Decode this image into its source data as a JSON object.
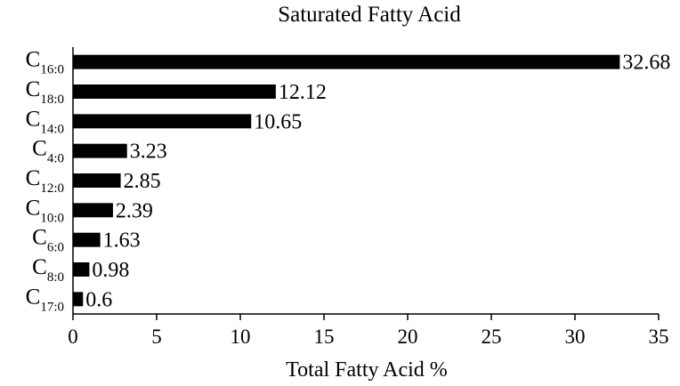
{
  "chart_data": {
    "type": "bar",
    "orientation": "horizontal",
    "title": "Saturated Fatty Acid",
    "xlabel": "Total Fatty Acid %",
    "ylabel": "",
    "xlim": [
      0,
      35
    ],
    "x_ticks": [
      0,
      5,
      10,
      15,
      20,
      25,
      30,
      35
    ],
    "grid": false,
    "bar_color": "#000000",
    "categories": [
      {
        "base": "C",
        "sub": "16:0"
      },
      {
        "base": "C",
        "sub": "18:0"
      },
      {
        "base": "C",
        "sub": "14:0"
      },
      {
        "base": "C",
        "sub": "4:0"
      },
      {
        "base": "C",
        "sub": "12:0"
      },
      {
        "base": "C",
        "sub": "10:0"
      },
      {
        "base": "C",
        "sub": "6:0"
      },
      {
        "base": "C",
        "sub": "8:0"
      },
      {
        "base": "C",
        "sub": "17:0"
      }
    ],
    "values": [
      32.68,
      12.12,
      10.65,
      3.23,
      2.85,
      2.39,
      1.63,
      0.98,
      0.6
    ],
    "value_labels": [
      "32.68",
      "12.12",
      "10.65",
      "3.23",
      "2.85",
      "2.39",
      "1.63",
      "0.98",
      "0.6"
    ]
  }
}
